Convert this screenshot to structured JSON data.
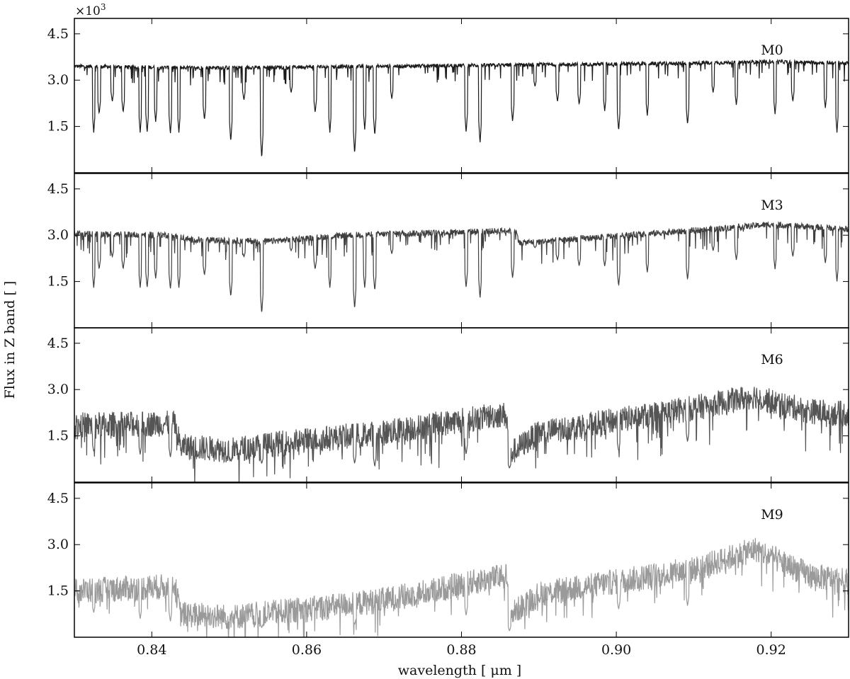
{
  "chart_data": {
    "type": "line",
    "xlabel": "wavelength [ μm ]",
    "ylabel": "Flux in Z band [ ]",
    "scale_factor_label": "×10",
    "scale_factor_exponent": "3",
    "xlim": [
      0.83,
      0.93
    ],
    "ylim": [
      0.0,
      5.0
    ],
    "x_ticks": [
      0.84,
      0.86,
      0.88,
      0.9,
      0.92
    ],
    "x_tick_labels": [
      "0.84",
      "0.86",
      "0.88",
      "0.90",
      "0.92"
    ],
    "y_ticks": [
      1.5,
      3.0,
      4.5
    ],
    "y_tick_labels": [
      "1.5",
      "3.0",
      "4.5"
    ],
    "grid": false,
    "panels": [
      {
        "name": "M0",
        "color": "#1a1a1a",
        "noise": 0.06,
        "absorption": 0.55,
        "continuum": [
          [
            0.83,
            3.45
          ],
          [
            0.845,
            3.4
          ],
          [
            0.86,
            3.43
          ],
          [
            0.87,
            3.45
          ],
          [
            0.89,
            3.5
          ],
          [
            0.91,
            3.55
          ],
          [
            0.92,
            3.6
          ],
          [
            0.93,
            3.55
          ]
        ],
        "lines": [
          [
            0.8325,
            1.3
          ],
          [
            0.8332,
            1.9
          ],
          [
            0.8349,
            2.3
          ],
          [
            0.8363,
            1.95
          ],
          [
            0.8385,
            1.3
          ],
          [
            0.8394,
            1.3
          ],
          [
            0.8405,
            1.65
          ],
          [
            0.8424,
            1.25
          ],
          [
            0.8435,
            1.3
          ],
          [
            0.8468,
            1.7
          ],
          [
            0.8502,
            1.0
          ],
          [
            0.8519,
            2.35
          ],
          [
            0.8542,
            0.45
          ],
          [
            0.858,
            2.6
          ],
          [
            0.8611,
            1.95
          ],
          [
            0.863,
            1.3
          ],
          [
            0.8662,
            0.6
          ],
          [
            0.8675,
            1.4
          ],
          [
            0.8688,
            1.2
          ],
          [
            0.871,
            2.4
          ],
          [
            0.8806,
            1.3
          ],
          [
            0.8824,
            0.95
          ],
          [
            0.8866,
            1.65
          ],
          [
            0.8895,
            2.8
          ],
          [
            0.8924,
            2.3
          ],
          [
            0.8952,
            2.2
          ],
          [
            0.8985,
            2.0
          ],
          [
            0.9003,
            1.35
          ],
          [
            0.904,
            1.85
          ],
          [
            0.9092,
            1.55
          ],
          [
            0.9125,
            2.6
          ],
          [
            0.9155,
            2.2
          ],
          [
            0.9205,
            1.9
          ],
          [
            0.9228,
            2.3
          ],
          [
            0.927,
            2.1
          ],
          [
            0.9285,
            1.3
          ]
        ]
      },
      {
        "name": "M3",
        "color": "#3f3f3f",
        "noise": 0.1,
        "absorption": 0.7,
        "continuum": [
          [
            0.83,
            3.05
          ],
          [
            0.843,
            3.0
          ],
          [
            0.845,
            2.85
          ],
          [
            0.855,
            2.8
          ],
          [
            0.865,
            3.0
          ],
          [
            0.887,
            3.15
          ],
          [
            0.8875,
            2.75
          ],
          [
            0.91,
            3.15
          ],
          [
            0.92,
            3.35
          ],
          [
            0.93,
            3.2
          ]
        ],
        "lines": [
          [
            0.8325,
            1.3
          ],
          [
            0.8332,
            1.9
          ],
          [
            0.8349,
            2.3
          ],
          [
            0.8363,
            1.9
          ],
          [
            0.8385,
            1.3
          ],
          [
            0.8394,
            1.3
          ],
          [
            0.8405,
            1.6
          ],
          [
            0.8424,
            1.25
          ],
          [
            0.8435,
            1.3
          ],
          [
            0.8468,
            1.7
          ],
          [
            0.8502,
            1.0
          ],
          [
            0.8519,
            2.3
          ],
          [
            0.8542,
            0.45
          ],
          [
            0.858,
            2.5
          ],
          [
            0.8611,
            1.9
          ],
          [
            0.863,
            1.3
          ],
          [
            0.8662,
            0.6
          ],
          [
            0.8675,
            1.3
          ],
          [
            0.8688,
            1.2
          ],
          [
            0.871,
            2.4
          ],
          [
            0.8806,
            1.3
          ],
          [
            0.8824,
            0.95
          ],
          [
            0.8866,
            1.6
          ],
          [
            0.8895,
            2.6
          ],
          [
            0.8924,
            2.2
          ],
          [
            0.8952,
            2.0
          ],
          [
            0.8985,
            2.0
          ],
          [
            0.9003,
            1.35
          ],
          [
            0.904,
            1.8
          ],
          [
            0.9092,
            1.55
          ],
          [
            0.9125,
            2.5
          ],
          [
            0.9155,
            2.2
          ],
          [
            0.9205,
            1.9
          ],
          [
            0.9228,
            2.3
          ],
          [
            0.927,
            2.1
          ],
          [
            0.9285,
            1.5
          ]
        ]
      },
      {
        "name": "M6",
        "color": "#555555",
        "noise": 0.42,
        "absorption": 1.1,
        "continuum": [
          [
            0.83,
            1.85
          ],
          [
            0.843,
            1.9
          ],
          [
            0.8437,
            1.15
          ],
          [
            0.85,
            1.05
          ],
          [
            0.86,
            1.35
          ],
          [
            0.87,
            1.6
          ],
          [
            0.88,
            2.0
          ],
          [
            0.8858,
            2.2
          ],
          [
            0.8862,
            0.9
          ],
          [
            0.89,
            1.6
          ],
          [
            0.9,
            2.0
          ],
          [
            0.91,
            2.4
          ],
          [
            0.918,
            2.8
          ],
          [
            0.92,
            2.6
          ],
          [
            0.925,
            2.3
          ],
          [
            0.93,
            2.2
          ]
        ],
        "lines": [
          [
            0.8325,
            1.0
          ],
          [
            0.8385,
            0.9
          ],
          [
            0.8424,
            0.8
          ],
          [
            0.8502,
            0.7
          ],
          [
            0.8542,
            0.6
          ],
          [
            0.8662,
            0.6
          ],
          [
            0.8688,
            0.5
          ],
          [
            0.8806,
            0.9
          ],
          [
            0.8862,
            0.45
          ],
          [
            0.9003,
            1.0
          ],
          [
            0.9092,
            1.3
          ]
        ]
      },
      {
        "name": "M9",
        "color": "#9a9a9a",
        "noise": 0.42,
        "absorption": 0.9,
        "continuum": [
          [
            0.83,
            1.5
          ],
          [
            0.843,
            1.65
          ],
          [
            0.8437,
            0.75
          ],
          [
            0.85,
            0.65
          ],
          [
            0.86,
            0.9
          ],
          [
            0.87,
            1.2
          ],
          [
            0.88,
            1.7
          ],
          [
            0.8858,
            2.0
          ],
          [
            0.8862,
            0.7
          ],
          [
            0.89,
            1.4
          ],
          [
            0.9,
            1.8
          ],
          [
            0.91,
            2.2
          ],
          [
            0.918,
            2.85
          ],
          [
            0.92,
            2.6
          ],
          [
            0.925,
            2.0
          ],
          [
            0.93,
            1.8
          ]
        ],
        "lines": [
          [
            0.8325,
            0.8
          ],
          [
            0.8385,
            0.6
          ],
          [
            0.8424,
            0.5
          ],
          [
            0.8542,
            0.3
          ],
          [
            0.8662,
            0.4
          ],
          [
            0.8806,
            0.7
          ],
          [
            0.8862,
            0.2
          ],
          [
            0.9003,
            0.9
          ],
          [
            0.9092,
            1.0
          ]
        ]
      }
    ]
  }
}
